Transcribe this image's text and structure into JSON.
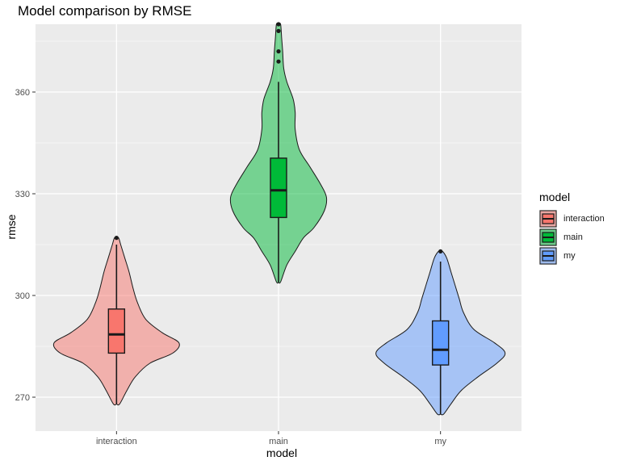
{
  "chart_data": {
    "type": "violin",
    "title": "Model comparison by RMSE",
    "xlabel": "model",
    "ylabel": "rmse",
    "categories": [
      "interaction",
      "main",
      "my"
    ],
    "ylim": [
      260,
      380
    ],
    "yticks": [
      270,
      300,
      330,
      360
    ],
    "grid": true,
    "legend": {
      "title": "model",
      "position": "right",
      "entries": [
        "interaction",
        "main",
        "my"
      ]
    },
    "colors": {
      "interaction": "#F8766D",
      "main": "#00BA38",
      "my": "#619CFF"
    },
    "violin_alpha": 0.5,
    "series": [
      {
        "name": "interaction",
        "min": 268,
        "max": 317,
        "density_profile": [
          [
            268,
            1.5
          ],
          [
            272,
            5
          ],
          [
            276,
            9
          ],
          [
            280,
            16
          ],
          [
            283,
            27
          ],
          [
            286,
            30
          ],
          [
            289,
            22
          ],
          [
            293,
            14
          ],
          [
            298,
            10
          ],
          [
            302,
            8
          ],
          [
            307,
            6
          ],
          [
            311,
            4
          ],
          [
            315,
            2
          ],
          [
            317,
            1
          ]
        ],
        "box": {
          "q1": 283,
          "median": 288.5,
          "q3": 296,
          "whisker_low": 268,
          "whisker_high": 315
        },
        "outliers": [
          317
        ]
      },
      {
        "name": "main",
        "min": 304,
        "max": 380,
        "density_profile": [
          [
            304,
            1
          ],
          [
            309,
            4
          ],
          [
            313,
            8
          ],
          [
            317,
            12
          ],
          [
            320,
            17
          ],
          [
            325,
            22
          ],
          [
            329,
            23
          ],
          [
            333,
            20
          ],
          [
            338,
            15
          ],
          [
            343,
            10
          ],
          [
            349,
            8
          ],
          [
            354,
            8
          ],
          [
            358,
            7
          ],
          [
            363,
            4
          ],
          [
            367,
            2.5
          ],
          [
            372,
            2
          ],
          [
            376,
            1.5
          ],
          [
            380,
            1
          ]
        ],
        "box": {
          "q1": 323,
          "median": 331,
          "q3": 340.5,
          "whisker_low": 304,
          "whisker_high": 363
        },
        "outliers": [
          369,
          372,
          378,
          380
        ]
      },
      {
        "name": "my",
        "min": 265,
        "max": 313,
        "density_profile": [
          [
            265,
            1.5
          ],
          [
            268,
            5
          ],
          [
            272,
            10
          ],
          [
            276,
            18
          ],
          [
            280,
            27
          ],
          [
            283,
            31
          ],
          [
            286,
            26
          ],
          [
            290,
            16
          ],
          [
            295,
            11
          ],
          [
            299,
            9
          ],
          [
            303,
            7
          ],
          [
            307,
            5
          ],
          [
            311,
            3
          ],
          [
            313,
            1
          ]
        ],
        "box": {
          "q1": 279.5,
          "median": 284,
          "q3": 292.5,
          "whisker_low": 265,
          "whisker_high": 310
        },
        "outliers": [
          313
        ]
      }
    ]
  }
}
